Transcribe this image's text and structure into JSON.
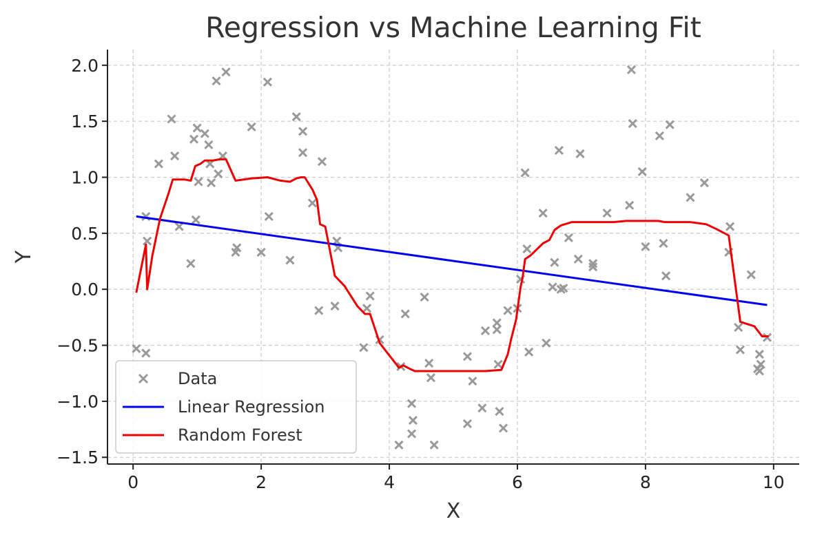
{
  "chart_data": {
    "type": "scatter",
    "title": "Regression vs Machine Learning Fit",
    "xlabel": "X",
    "ylabel": "Y",
    "xlim": [
      -0.4,
      10.4
    ],
    "ylim": [
      -1.56,
      2.14
    ],
    "grid": true,
    "legend_position": "lower-left",
    "x_ticks": [
      0,
      2,
      4,
      6,
      8,
      10
    ],
    "x_tick_labels": [
      "0",
      "2",
      "4",
      "6",
      "8",
      "10"
    ],
    "y_ticks": [
      2.0,
      1.5,
      1.0,
      0.5,
      0.0,
      -0.5,
      -1.0,
      -1.5
    ],
    "y_tick_labels": [
      "2.0",
      "1.5",
      "1.0",
      "0.5",
      "0.0",
      "−0.5",
      "−1.0",
      "−1.5"
    ],
    "series": [
      {
        "name": "Data",
        "kind": "scatter",
        "marker": "x",
        "color": "#999999",
        "points": [
          [
            0.05,
            -0.53
          ],
          [
            0.2,
            0.65
          ],
          [
            0.2,
            -0.57
          ],
          [
            0.22,
            0.43
          ],
          [
            0.4,
            1.12
          ],
          [
            0.6,
            1.52
          ],
          [
            0.65,
            1.19
          ],
          [
            0.72,
            0.56
          ],
          [
            0.9,
            0.23
          ],
          [
            0.95,
            1.34
          ],
          [
            0.98,
            0.62
          ],
          [
            1.0,
            1.44
          ],
          [
            1.02,
            0.96
          ],
          [
            1.12,
            1.39
          ],
          [
            1.18,
            1.29
          ],
          [
            1.2,
            1.12
          ],
          [
            1.22,
            0.95
          ],
          [
            1.3,
            1.86
          ],
          [
            1.33,
            1.03
          ],
          [
            1.4,
            1.19
          ],
          [
            1.45,
            1.94
          ],
          [
            1.6,
            0.33
          ],
          [
            1.62,
            0.37
          ],
          [
            1.85,
            1.45
          ],
          [
            2.0,
            0.33
          ],
          [
            2.1,
            1.85
          ],
          [
            2.12,
            0.65
          ],
          [
            2.45,
            0.26
          ],
          [
            2.55,
            1.54
          ],
          [
            2.65,
            1.41
          ],
          [
            2.65,
            1.22
          ],
          [
            2.8,
            0.77
          ],
          [
            2.9,
            -0.19
          ],
          [
            2.95,
            1.14
          ],
          [
            3.15,
            -0.15
          ],
          [
            3.18,
            0.43
          ],
          [
            3.2,
            0.37
          ],
          [
            3.6,
            -0.52
          ],
          [
            3.65,
            -0.17
          ],
          [
            3.7,
            -0.06
          ],
          [
            3.85,
            -0.45
          ],
          [
            4.15,
            -1.39
          ],
          [
            4.18,
            -0.69
          ],
          [
            4.25,
            -0.22
          ],
          [
            4.35,
            -1.02
          ],
          [
            4.37,
            -1.17
          ],
          [
            4.35,
            -1.29
          ],
          [
            4.55,
            -0.07
          ],
          [
            4.62,
            -0.66
          ],
          [
            4.65,
            -0.79
          ],
          [
            4.7,
            -1.39
          ],
          [
            5.22,
            -0.6
          ],
          [
            5.22,
            -1.2
          ],
          [
            5.3,
            -0.82
          ],
          [
            5.45,
            -1.06
          ],
          [
            5.5,
            -0.37
          ],
          [
            5.68,
            -0.3
          ],
          [
            5.68,
            -0.36
          ],
          [
            5.7,
            -0.67
          ],
          [
            5.72,
            -1.09
          ],
          [
            5.78,
            -1.24
          ],
          [
            5.85,
            -0.19
          ],
          [
            6.0,
            -0.17
          ],
          [
            6.05,
            0.09
          ],
          [
            6.12,
            1.04
          ],
          [
            6.15,
            0.36
          ],
          [
            6.18,
            -0.56
          ],
          [
            6.4,
            0.68
          ],
          [
            6.45,
            -0.48
          ],
          [
            6.55,
            0.02
          ],
          [
            6.58,
            0.24
          ],
          [
            6.65,
            1.24
          ],
          [
            6.68,
            0.0
          ],
          [
            6.72,
            0.01
          ],
          [
            6.8,
            0.46
          ],
          [
            6.95,
            0.27
          ],
          [
            6.98,
            1.21
          ],
          [
            7.18,
            0.23
          ],
          [
            7.18,
            0.2
          ],
          [
            7.4,
            0.68
          ],
          [
            7.75,
            0.75
          ],
          [
            7.78,
            1.96
          ],
          [
            7.8,
            1.48
          ],
          [
            7.95,
            1.05
          ],
          [
            8.0,
            0.38
          ],
          [
            8.22,
            1.37
          ],
          [
            8.28,
            0.41
          ],
          [
            8.32,
            0.12
          ],
          [
            8.38,
            1.47
          ],
          [
            8.7,
            0.82
          ],
          [
            8.92,
            0.95
          ],
          [
            9.3,
            0.33
          ],
          [
            9.32,
            0.56
          ],
          [
            9.45,
            -0.34
          ],
          [
            9.48,
            -0.54
          ],
          [
            9.65,
            0.13
          ],
          [
            9.75,
            -0.71
          ],
          [
            9.78,
            -0.73
          ],
          [
            9.78,
            -0.58
          ],
          [
            9.8,
            -0.67
          ],
          [
            9.9,
            -0.43
          ]
        ]
      },
      {
        "name": "Linear Regression",
        "kind": "line",
        "color": "#0000ee",
        "points": [
          [
            0.05,
            0.65
          ],
          [
            9.9,
            -0.14
          ]
        ]
      },
      {
        "name": "Random Forest",
        "kind": "line",
        "color": "#ee0000",
        "points": [
          [
            0.05,
            -0.03
          ],
          [
            0.2,
            0.4
          ],
          [
            0.22,
            0.0
          ],
          [
            0.3,
            0.3
          ],
          [
            0.42,
            0.63
          ],
          [
            0.55,
            0.85
          ],
          [
            0.62,
            0.98
          ],
          [
            0.8,
            0.98
          ],
          [
            0.9,
            0.97
          ],
          [
            0.97,
            1.1
          ],
          [
            1.05,
            1.12
          ],
          [
            1.12,
            1.15
          ],
          [
            1.25,
            1.15
          ],
          [
            1.35,
            1.16
          ],
          [
            1.45,
            1.16
          ],
          [
            1.6,
            0.97
          ],
          [
            1.85,
            0.99
          ],
          [
            2.1,
            1.0
          ],
          [
            2.3,
            0.97
          ],
          [
            2.45,
            0.96
          ],
          [
            2.55,
            0.99
          ],
          [
            2.62,
            1.0
          ],
          [
            2.68,
            1.0
          ],
          [
            2.8,
            0.89
          ],
          [
            2.87,
            0.8
          ],
          [
            2.92,
            0.58
          ],
          [
            3.0,
            0.56
          ],
          [
            3.15,
            0.12
          ],
          [
            3.3,
            0.03
          ],
          [
            3.5,
            -0.15
          ],
          [
            3.62,
            -0.22
          ],
          [
            3.7,
            -0.22
          ],
          [
            3.85,
            -0.48
          ],
          [
            4.15,
            -0.7
          ],
          [
            4.22,
            -0.68
          ],
          [
            4.32,
            -0.71
          ],
          [
            4.4,
            -0.73
          ],
          [
            4.7,
            -0.73
          ],
          [
            5.0,
            -0.73
          ],
          [
            5.5,
            -0.73
          ],
          [
            5.75,
            -0.72
          ],
          [
            5.85,
            -0.58
          ],
          [
            5.9,
            -0.45
          ],
          [
            5.98,
            -0.27
          ],
          [
            6.05,
            0.02
          ],
          [
            6.08,
            0.1
          ],
          [
            6.12,
            0.27
          ],
          [
            6.2,
            0.3
          ],
          [
            6.4,
            0.41
          ],
          [
            6.5,
            0.44
          ],
          [
            6.58,
            0.53
          ],
          [
            6.68,
            0.57
          ],
          [
            6.85,
            0.6
          ],
          [
            7.0,
            0.6
          ],
          [
            7.3,
            0.6
          ],
          [
            7.5,
            0.6
          ],
          [
            7.7,
            0.61
          ],
          [
            8.0,
            0.61
          ],
          [
            8.2,
            0.61
          ],
          [
            8.3,
            0.6
          ],
          [
            8.7,
            0.6
          ],
          [
            8.95,
            0.58
          ],
          [
            9.1,
            0.54
          ],
          [
            9.3,
            0.48
          ],
          [
            9.48,
            -0.29
          ],
          [
            9.7,
            -0.33
          ],
          [
            9.82,
            -0.42
          ],
          [
            9.92,
            -0.42
          ]
        ]
      }
    ]
  }
}
